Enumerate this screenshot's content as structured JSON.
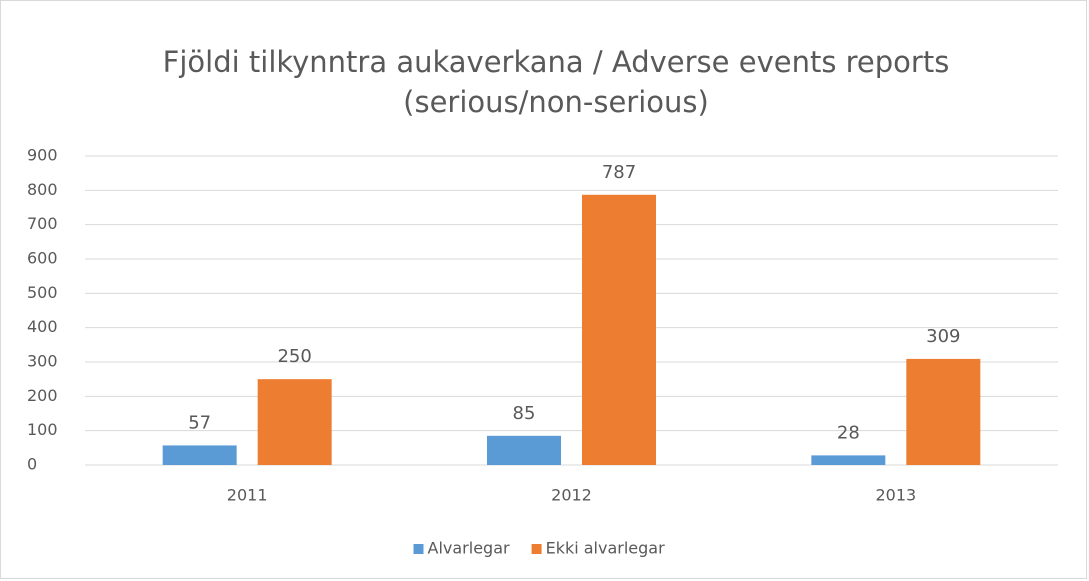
{
  "chart_data": {
    "type": "bar",
    "title": [
      "Fjöldi tilkynntra aukaverkana / Adverse events reports",
      "(serious/non-serious)"
    ],
    "categories": [
      "2011",
      "2012",
      "2013"
    ],
    "series": [
      {
        "name": "Alvarlegar",
        "color": "#5b9bd5",
        "values": [
          57,
          85,
          28
        ]
      },
      {
        "name": "Ekki alvarlegar",
        "color": "#ed7d31",
        "values": [
          250,
          787,
          309
        ]
      }
    ],
    "ylim": [
      0,
      900
    ],
    "yticks": [
      0,
      100,
      200,
      300,
      400,
      500,
      600,
      700,
      800,
      900
    ],
    "grid": true,
    "legend": "bottom"
  }
}
